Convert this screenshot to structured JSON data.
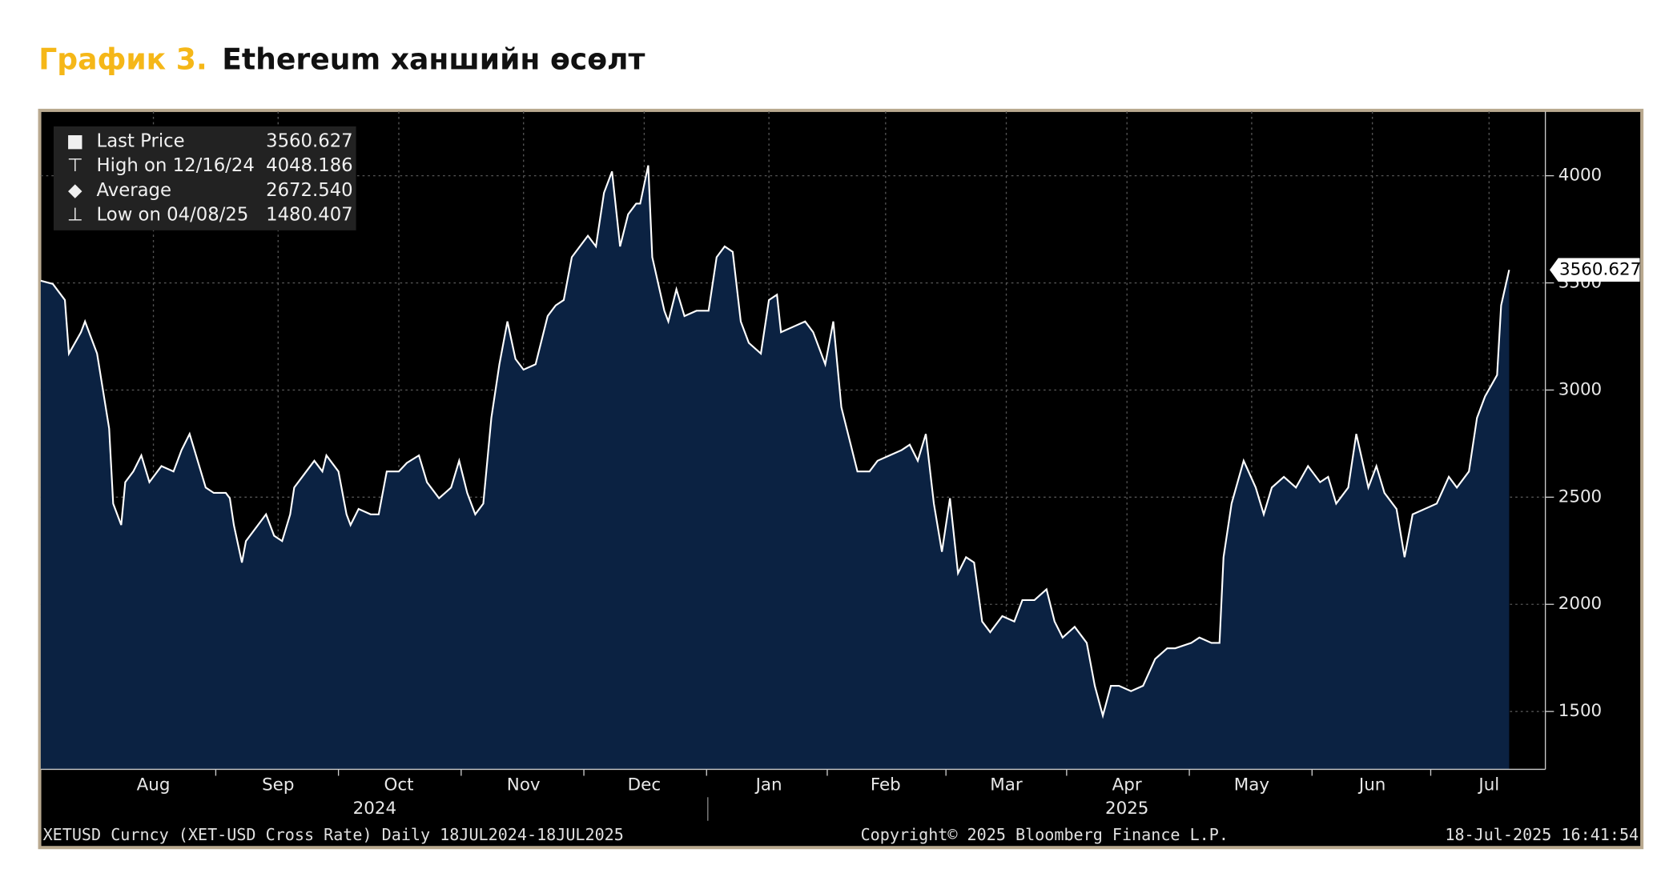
{
  "chart_data": {
    "type": "area",
    "title_prefix": "График 3.",
    "title": "Ethereum ханшийн өсөлт",
    "x": [
      0,
      3,
      6,
      7,
      10,
      11,
      14,
      17,
      18,
      20,
      21,
      23,
      25,
      27,
      30,
      33,
      35,
      37,
      39,
      41,
      43,
      46,
      47,
      48,
      50,
      51,
      54,
      56,
      58,
      60,
      62,
      63,
      66,
      68,
      70,
      71,
      74,
      76,
      77,
      79,
      82,
      84,
      86,
      89,
      91,
      94,
      96,
      99,
      102,
      104,
      106,
      108,
      110,
      112,
      114,
      116,
      118,
      120,
      123,
      126,
      128,
      130,
      132,
      134,
      136,
      138,
      140,
      142,
      144,
      146,
      148,
      149,
      151,
      152,
      155,
      156,
      158,
      160,
      163,
      166,
      168,
      170,
      172,
      174,
      176,
      179,
      181,
      183,
      184,
      187,
      190,
      192,
      195,
      197,
      199,
      201,
      203,
      206,
      208,
      211,
      214,
      216,
      218,
      220,
      222,
      224,
      226,
      228,
      230,
      232,
      234,
      236,
      239,
      242,
      244,
      247,
      250,
      252,
      254,
      257,
      260,
      262,
      264,
      266,
      268,
      271,
      274,
      277,
      280,
      282,
      286,
      288,
      291,
      293,
      294,
      296,
      299,
      302,
      304,
      306,
      309,
      312,
      315,
      318,
      320,
      322,
      325,
      327,
      330,
      332,
      334,
      337,
      339,
      341,
      344,
      347,
      350,
      352,
      355,
      357,
      359,
      362,
      363,
      365
    ],
    "values": [
      3510,
      3495,
      3420,
      3170,
      3270,
      3320,
      3170,
      2820,
      2470,
      2370,
      2570,
      2620,
      2695,
      2570,
      2645,
      2620,
      2720,
      2795,
      2670,
      2545,
      2520,
      2520,
      2495,
      2370,
      2195,
      2295,
      2370,
      2420,
      2320,
      2295,
      2420,
      2545,
      2620,
      2670,
      2620,
      2695,
      2620,
      2420,
      2370,
      2445,
      2420,
      2420,
      2620,
      2620,
      2660,
      2695,
      2570,
      2495,
      2545,
      2670,
      2520,
      2420,
      2470,
      2870,
      3120,
      3320,
      3145,
      3095,
      3120,
      3345,
      3395,
      3420,
      3620,
      3670,
      3720,
      3670,
      3920,
      4020,
      3670,
      3820,
      3870,
      3870,
      4048.186,
      3620,
      3370,
      3320,
      3470,
      3345,
      3370,
      3370,
      3620,
      3670,
      3645,
      3320,
      3220,
      3170,
      3420,
      3445,
      3270,
      3295,
      3320,
      3270,
      3120,
      3320,
      2920,
      2770,
      2620,
      2620,
      2670,
      2695,
      2720,
      2745,
      2670,
      2795,
      2470,
      2245,
      2495,
      2145,
      2220,
      2195,
      1920,
      1870,
      1945,
      1920,
      2020,
      2020,
      2070,
      1920,
      1845,
      1895,
      1820,
      1620,
      1480.407,
      1620,
      1620,
      1595,
      1620,
      1745,
      1795,
      1795,
      1820,
      1845,
      1820,
      1820,
      2220,
      2470,
      2670,
      2545,
      2420,
      2545,
      2595,
      2545,
      2645,
      2570,
      2595,
      2470,
      2545,
      2795,
      2545,
      2645,
      2520,
      2445,
      2220,
      2420,
      2445,
      2470,
      2595,
      2545,
      2620,
      2870,
      2970,
      3070,
      3395,
      3560.627
    ],
    "color": "#ffffff",
    "fill_color": "#0b2242",
    "xlim": [
      0,
      374
    ],
    "xticks": [
      {
        "value": 28,
        "label": "Aug"
      },
      {
        "value": 59,
        "label": "Sep"
      },
      {
        "value": 89,
        "label": "Oct"
      },
      {
        "value": 120,
        "label": "Nov"
      },
      {
        "value": 150,
        "label": "Dec"
      },
      {
        "value": 181,
        "label": "Jan"
      },
      {
        "value": 210,
        "label": "Feb"
      },
      {
        "value": 240,
        "label": "Mar"
      },
      {
        "value": 270,
        "label": "Apr"
      },
      {
        "value": 301,
        "label": "May"
      },
      {
        "value": 331,
        "label": "Jun"
      },
      {
        "value": 360,
        "label": "Jul"
      }
    ],
    "year_ticks": [
      {
        "value": 83,
        "label": "2024"
      },
      {
        "value": 270,
        "label": "2025"
      }
    ],
    "ylim": [
      1230,
      4300
    ],
    "yticks": [
      1500,
      2000,
      2500,
      3000,
      3500,
      4000
    ],
    "grid": true,
    "stats": [
      {
        "label": "Last Price",
        "value": 3560.627
      },
      {
        "label": "High on 12/16/24",
        "value": 4048.186
      },
      {
        "label": "Average",
        "value": 2672.54,
        "value_label": "2672.540"
      },
      {
        "label": "Low on 04/08/25",
        "value": 1480.407
      }
    ],
    "footer_left": "XETUSD Curncy (XET-USD Cross Rate)  Daily 18JUL2024-18JUL2025",
    "footer_center": "Copyright© 2025 Bloomberg Finance L.P.",
    "footer_right": "18-Jul-2025 16:41:54"
  }
}
